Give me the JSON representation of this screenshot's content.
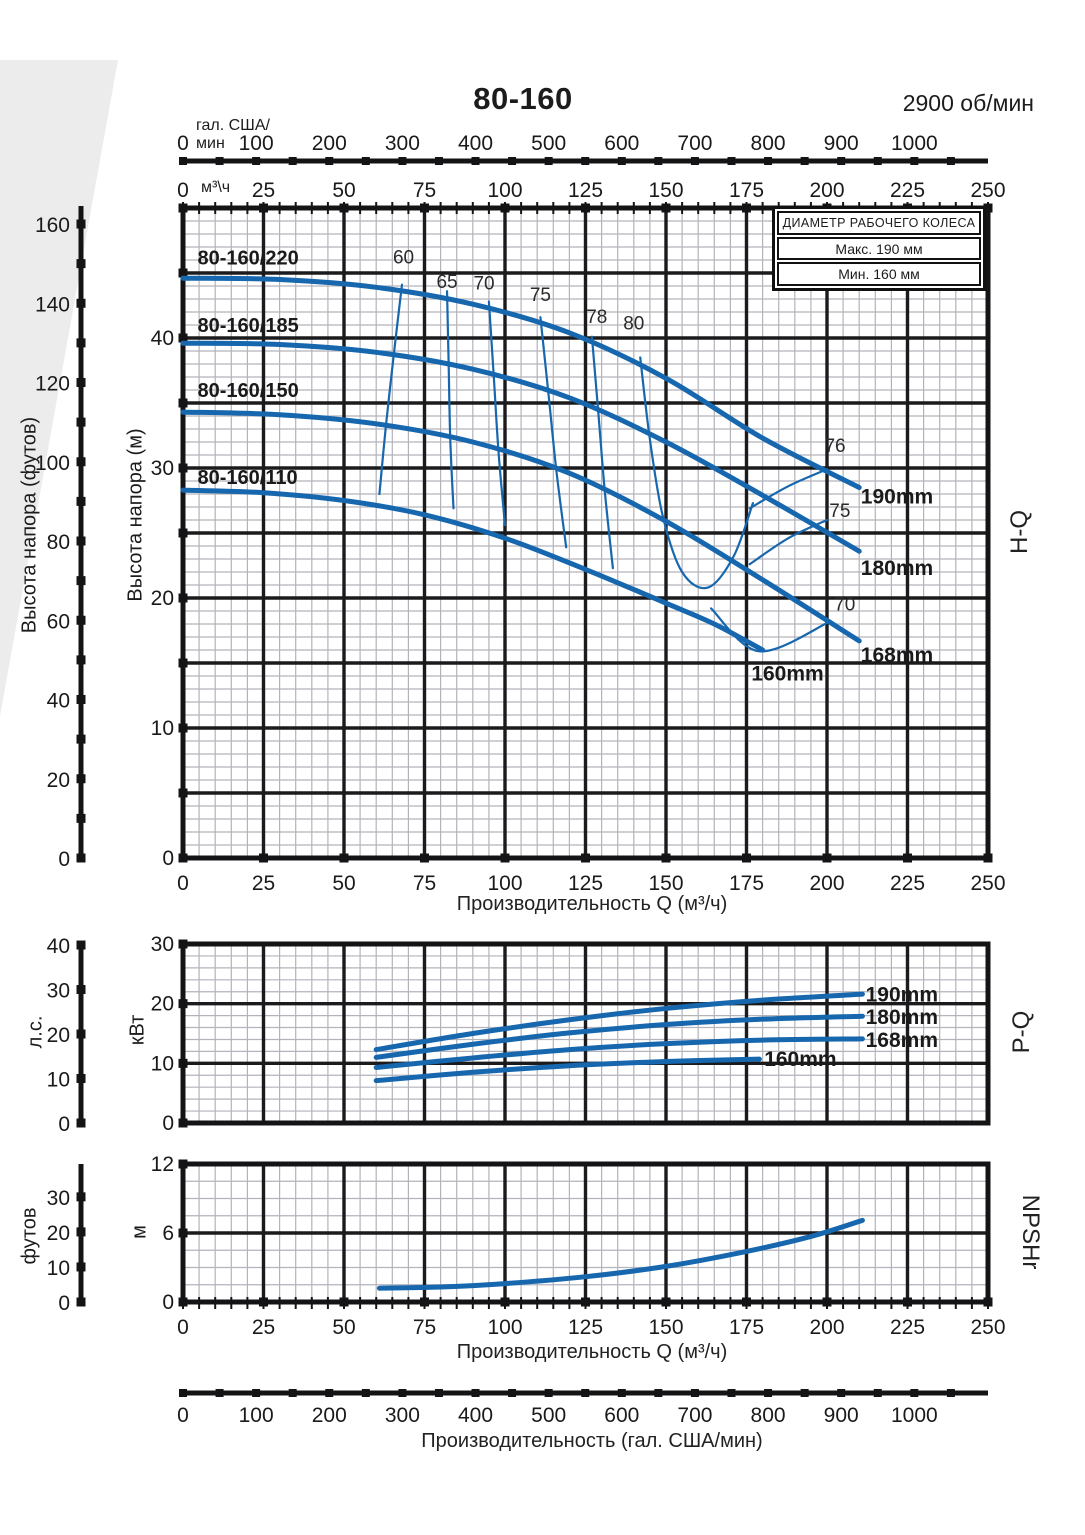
{
  "page": {
    "title": "80-160",
    "rpm": "2900 об/мин"
  },
  "colors": {
    "curve": "#1667ae",
    "grid_major": "#1b1b1d",
    "grid_minor": "#b3b3bb",
    "frame": "#141416",
    "text": "#1a1a1a",
    "wedge": "#ececec"
  },
  "legend": {
    "header": "ДИАМЕТР РАБОЧЕГО КОЛЕСА",
    "rows": [
      "Макс. 190 мм",
      "Мин. 160 мм"
    ]
  },
  "axis_titles": {
    "gal_unit_line1": "гал. США/",
    "gal_unit_line2": "мин",
    "m3h_unit": "м³\\ч",
    "head_ft": "Высота напора (футов)",
    "head_m": "Высота напора (м)",
    "hp": "л.с.",
    "kw": "кВт",
    "npsh_ft": "футов",
    "npsh_m": "м",
    "flow_m3h": "Производительность Q (м³/ч)",
    "flow_gal": "Производительность (гал. США/мин)"
  },
  "gal_axis": {
    "labels": [
      0,
      100,
      200,
      300,
      400,
      500,
      600,
      700,
      800,
      900,
      1000
    ],
    "label_step": 100,
    "tick_step": 50,
    "max_tick": 1050
  },
  "chart_data": [
    {
      "id": "hq",
      "type": "line",
      "side_label": "H-Q",
      "x": {
        "range": [
          0,
          250
        ],
        "major": 25,
        "minor": 5,
        "tick_labels": [
          0,
          25,
          50,
          75,
          100,
          125,
          150,
          175,
          200,
          225,
          250
        ]
      },
      "y": {
        "unit": "м",
        "range": [
          0,
          50
        ],
        "major": 5,
        "minor": 1,
        "tick_labels": [
          0,
          10,
          20,
          30,
          40
        ]
      },
      "y2": {
        "unit": "футов",
        "tick_labels": [
          0,
          20,
          40,
          60,
          80,
          100,
          120,
          140,
          160
        ]
      },
      "series": [
        {
          "name": "190mm",
          "points": [
            [
              0,
              44.6
            ],
            [
              30,
              44.5
            ],
            [
              60,
              43.9
            ],
            [
              90,
              42.6
            ],
            [
              120,
              40.4
            ],
            [
              150,
              36.9
            ],
            [
              180,
              32.3
            ],
            [
              210,
              28.5
            ]
          ]
        },
        {
          "name": "180mm",
          "points": [
            [
              0,
              39.6
            ],
            [
              30,
              39.5
            ],
            [
              60,
              38.9
            ],
            [
              90,
              37.6
            ],
            [
              120,
              35.4
            ],
            [
              150,
              32.0
            ],
            [
              180,
              27.9
            ],
            [
              210,
              23.6
            ]
          ]
        },
        {
          "name": "168mm",
          "points": [
            [
              0,
              34.3
            ],
            [
              30,
              34.1
            ],
            [
              60,
              33.4
            ],
            [
              90,
              32.0
            ],
            [
              120,
              29.6
            ],
            [
              150,
              25.9
            ],
            [
              180,
              21.4
            ],
            [
              210,
              16.7
            ]
          ]
        },
        {
          "name": "160mm",
          "points": [
            [
              0,
              28.3
            ],
            [
              25,
              28.1
            ],
            [
              50,
              27.5
            ],
            [
              75,
              26.4
            ],
            [
              100,
              24.6
            ],
            [
              125,
              22.2
            ],
            [
              150,
              19.6
            ],
            [
              165,
              18.0
            ],
            [
              180,
              16.0
            ]
          ]
        }
      ],
      "efficiency_lines": [
        {
          "value": 60,
          "points": [
            [
              68,
              44.1
            ],
            [
              65.5,
              38.8
            ],
            [
              63,
              33.2
            ],
            [
              61,
              28.0
            ]
          ]
        },
        {
          "value": 65,
          "points": [
            [
              82,
              43.6
            ],
            [
              82.5,
              38.0
            ],
            [
              83,
              32.2
            ],
            [
              84,
              26.9
            ]
          ]
        },
        {
          "value": 70,
          "points": [
            [
              95,
              42.8
            ],
            [
              96.5,
              37.1
            ],
            [
              98,
              31.2
            ],
            [
              100,
              25.6
            ]
          ]
        },
        {
          "value": 75,
          "points": [
            [
              111,
              41.6
            ],
            [
              113.5,
              35.7
            ],
            [
              116,
              29.7
            ],
            [
              119,
              23.9
            ]
          ]
        },
        {
          "value": 78,
          "points": [
            [
              127,
              40.1
            ],
            [
              129,
              34.2
            ],
            [
              131,
              28.2
            ],
            [
              133.5,
              22.3
            ]
          ]
        },
        {
          "value": 80,
          "points": [
            [
              142,
              38.5
            ],
            [
              145,
              32.2
            ],
            [
              149,
              26.3
            ],
            [
              155,
              22.0
            ],
            [
              163,
              20.8
            ],
            [
              171,
              23.2
            ],
            [
              177,
              27.3
            ]
          ]
        },
        {
          "value": 76,
          "points": [
            [
              176,
              26.9
            ],
            [
              188,
              28.6
            ],
            [
              200,
              29.9
            ]
          ]
        },
        {
          "value": 75,
          "points": [
            [
              176,
              22.6
            ],
            [
              188,
              24.6
            ],
            [
              200,
              26.0
            ]
          ]
        },
        {
          "value": 70,
          "points": [
            [
              164,
              19.2
            ],
            [
              179,
              15.9
            ],
            [
              201,
              18.2
            ]
          ]
        }
      ],
      "annotations": {
        "model_labels": [
          {
            "text": "80-160/220",
            "at": [
              4.5,
              46.2
            ]
          },
          {
            "text": "80-160/185",
            "at": [
              4.5,
              41.0
            ]
          },
          {
            "text": "80-160/150",
            "at": [
              4.5,
              36.0
            ]
          },
          {
            "text": "80-160/110",
            "at": [
              4.5,
              29.3
            ]
          }
        ],
        "series_labels": [
          {
            "text": "190mm",
            "at": [
              210.5,
              27.8
            ]
          },
          {
            "text": "180mm",
            "at": [
              210.5,
              22.3
            ]
          },
          {
            "text": "168mm",
            "at": [
              210.5,
              15.6
            ]
          },
          {
            "text": "160mm",
            "at": [
              176.5,
              14.2
            ]
          }
        ],
        "efficiency_labels": [
          {
            "text": "60",
            "at": [
              68.5,
              46.2
            ]
          },
          {
            "text": "65",
            "at": [
              82,
              44.3
            ]
          },
          {
            "text": "70",
            "at": [
              93.5,
              44.2
            ]
          },
          {
            "text": "75",
            "at": [
              111,
              43.3
            ]
          },
          {
            "text": "78",
            "at": [
              128.5,
              41.6
            ]
          },
          {
            "text": "80",
            "at": [
              140,
              41.1
            ]
          },
          {
            "text": "76",
            "at": [
              202.5,
              31.7
            ]
          },
          {
            "text": "75",
            "at": [
              204,
              26.7
            ]
          },
          {
            "text": "70",
            "at": [
              205.5,
              19.5
            ]
          }
        ]
      }
    },
    {
      "id": "pq",
      "type": "line",
      "side_label": "P-Q",
      "x": {
        "range": [
          0,
          250
        ],
        "major": 25,
        "minor": 5,
        "tick_labels": []
      },
      "y": {
        "unit": "кВт",
        "range": [
          0,
          30
        ],
        "major": 10,
        "minor": 2,
        "tick_labels": [
          0,
          10,
          20,
          30
        ]
      },
      "y2": {
        "unit": "л.с.",
        "tick_labels": [
          0,
          10,
          20,
          30,
          40
        ]
      },
      "series": [
        {
          "name": "190mm",
          "points": [
            [
              60,
              12.3
            ],
            [
              90,
              15.0
            ],
            [
              120,
              17.3
            ],
            [
              150,
              19.2
            ],
            [
              180,
              20.6
            ],
            [
              211,
              21.6
            ]
          ]
        },
        {
          "name": "180mm",
          "points": [
            [
              60,
              11.0
            ],
            [
              90,
              13.2
            ],
            [
              120,
              15.1
            ],
            [
              150,
              16.5
            ],
            [
              180,
              17.4
            ],
            [
              211,
              17.9
            ]
          ]
        },
        {
          "name": "168mm",
          "points": [
            [
              60,
              9.3
            ],
            [
              90,
              10.9
            ],
            [
              120,
              12.3
            ],
            [
              150,
              13.3
            ],
            [
              180,
              13.9
            ],
            [
              211,
              14.1
            ]
          ]
        },
        {
          "name": "160mm",
          "points": [
            [
              60,
              7.1
            ],
            [
              90,
              8.5
            ],
            [
              120,
              9.6
            ],
            [
              150,
              10.3
            ],
            [
              179,
              10.7
            ]
          ]
        }
      ],
      "efficiency_lines": [],
      "annotations": {
        "model_labels": [],
        "series_labels": [
          {
            "text": "190mm",
            "at": [
              212,
              21.5
            ]
          },
          {
            "text": "180mm",
            "at": [
              212,
              17.8
            ]
          },
          {
            "text": "168mm",
            "at": [
              212,
              13.9
            ]
          },
          {
            "text": "160mm",
            "at": [
              180.5,
              10.7
            ]
          }
        ],
        "efficiency_labels": []
      }
    },
    {
      "id": "npshr",
      "type": "line",
      "side_label": "NPSHr",
      "x": {
        "range": [
          0,
          250
        ],
        "major": 25,
        "minor": 5,
        "tick_labels": [
          0,
          25,
          50,
          75,
          100,
          125,
          150,
          175,
          200,
          225,
          250
        ]
      },
      "y": {
        "unit": "м",
        "range": [
          0,
          12
        ],
        "major": 6,
        "minor": 1.5,
        "tick_labels": [
          0,
          6,
          12
        ]
      },
      "y2": {
        "unit": "футов",
        "tick_labels": [
          0,
          10,
          20,
          30
        ]
      },
      "series": [
        {
          "name": "NPSHr",
          "points": [
            [
              61,
              1.2
            ],
            [
              80,
              1.3
            ],
            [
              100,
              1.6
            ],
            [
              125,
              2.2
            ],
            [
              150,
              3.1
            ],
            [
              175,
              4.4
            ],
            [
              195,
              5.7
            ],
            [
              211,
              7.1
            ]
          ]
        }
      ],
      "efficiency_lines": [],
      "annotations": {
        "model_labels": [],
        "series_labels": [],
        "efficiency_labels": []
      }
    }
  ]
}
